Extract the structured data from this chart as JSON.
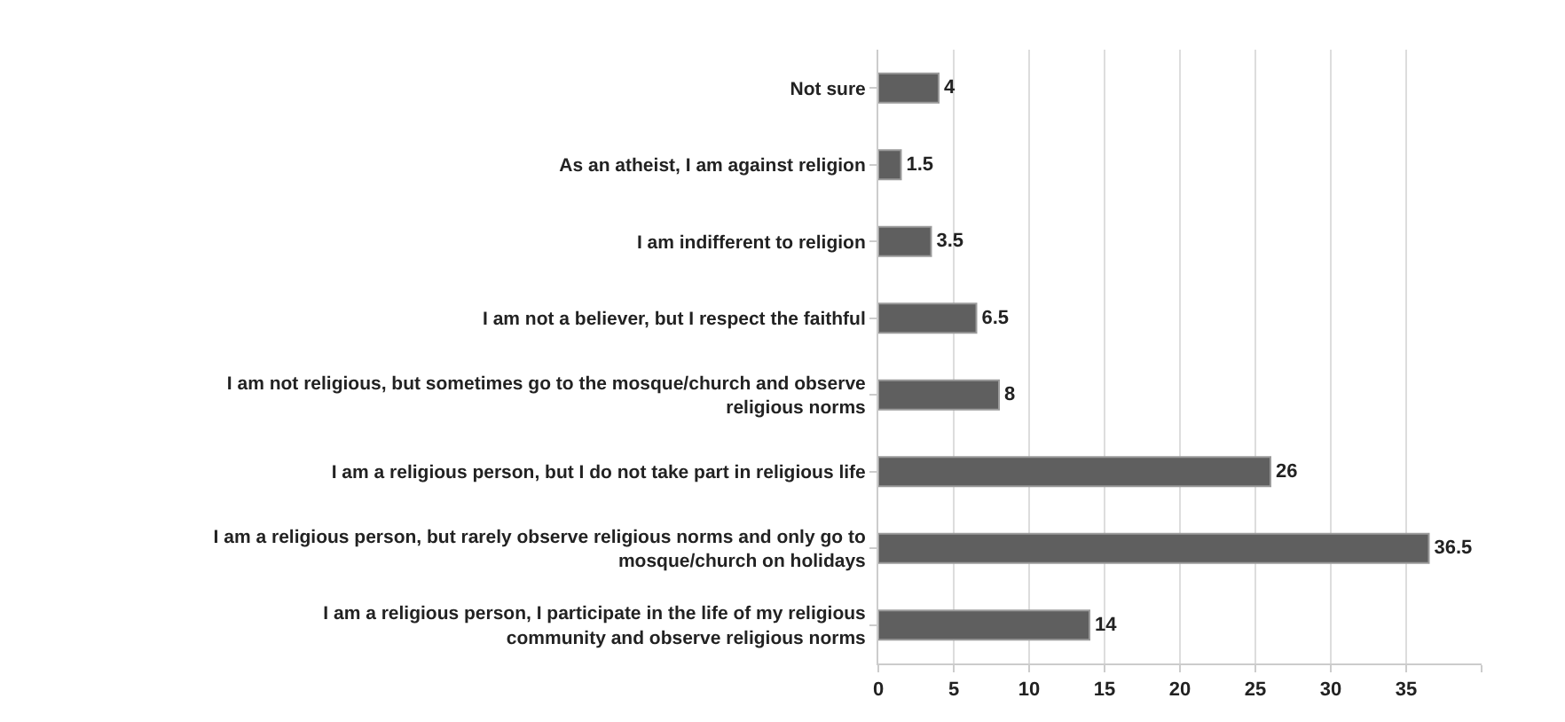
{
  "chart_data": {
    "type": "bar",
    "orientation": "horizontal",
    "categories": [
      "Not sure",
      "As an atheist, I am against religion",
      "I am indifferent to religion",
      "I am not a believer, but I respect the faithful",
      "I am not religious, but sometimes go to the mosque/church and observe religious norms",
      "I am a religious person, but I do not take part in religious life",
      "I am a religious person, but rarely observe religious norms and only go to mosque/church on holidays",
      "I am a religious person, I participate in the life of my religious community and observe religious norms"
    ],
    "values": [
      4,
      1.5,
      3.5,
      6.5,
      8,
      26,
      36.5,
      14
    ],
    "color": "#5f5f5f",
    "xlim": [
      0,
      40
    ],
    "xticks": [
      0,
      5,
      10,
      15,
      20,
      25,
      30,
      35,
      {
        "value": 40,
        "label": null
      }
    ],
    "grid": "x",
    "data_labels": true
  }
}
